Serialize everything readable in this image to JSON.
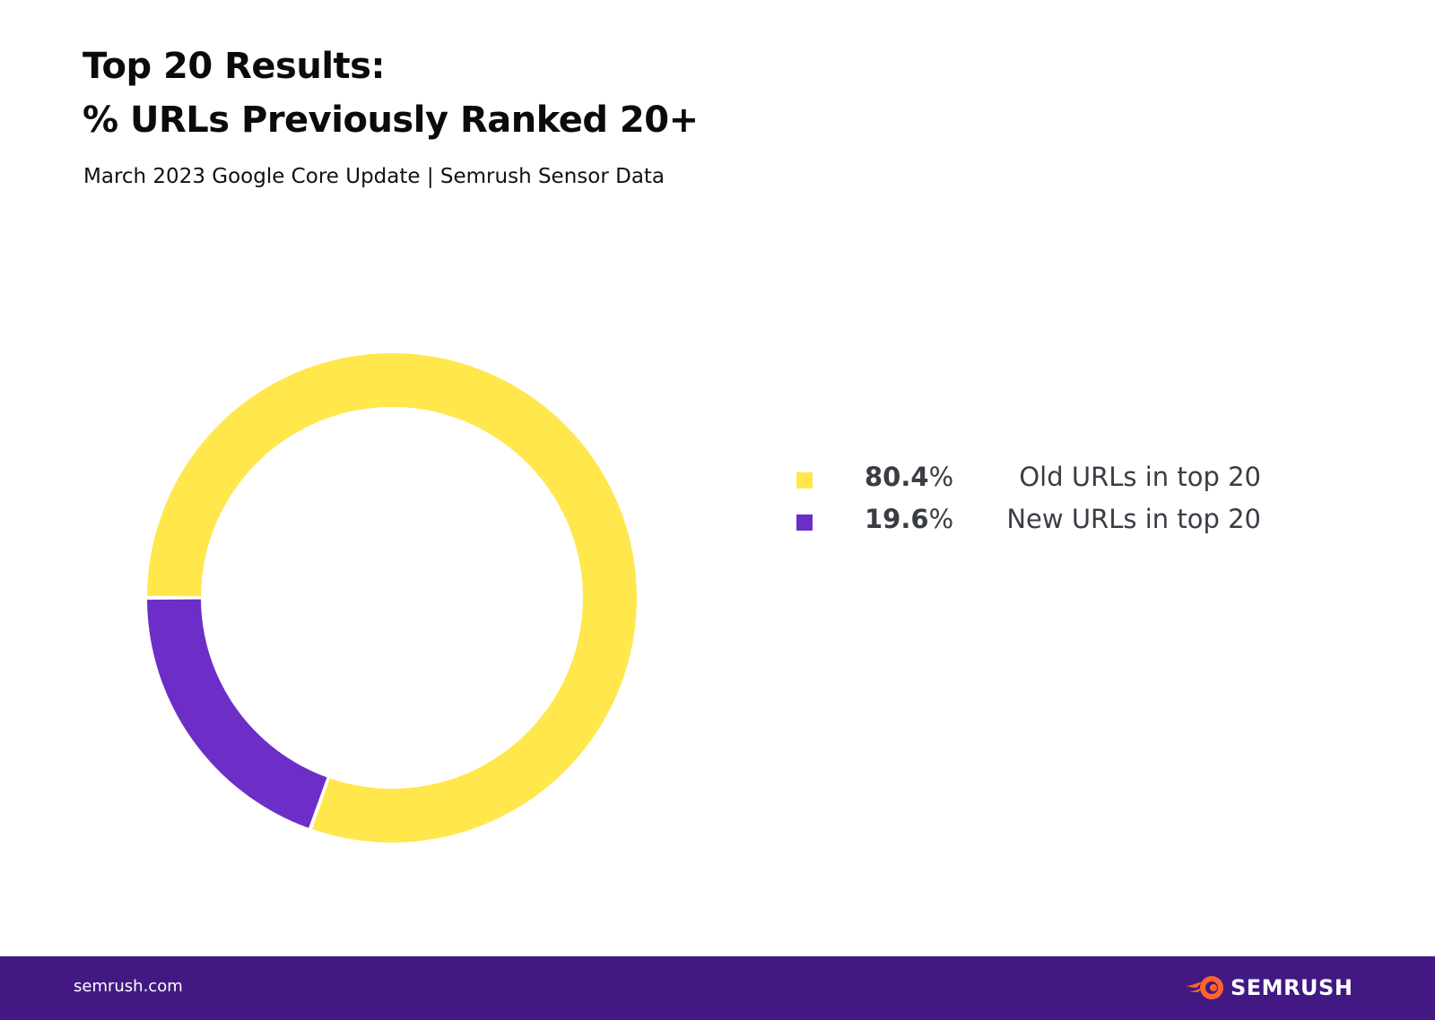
{
  "header": {
    "title_line1": "Top 20 Results:",
    "title_line2": "% URLs Previously Ranked 20+",
    "subtitle": "March 2023 Google Core Update | Semrush Sensor Data"
  },
  "chart_data": {
    "type": "pie",
    "donut": true,
    "categories": [
      "Old URLs in top 20",
      "New URLs in top 20"
    ],
    "values": [
      80.4,
      19.6
    ],
    "value_labels": [
      "80.4",
      "19.6"
    ],
    "unit": "%",
    "colors": [
      "#ffe74c",
      "#6c2ec7"
    ],
    "legend_position": "right"
  },
  "footer": {
    "site": "semrush.com",
    "brand": "SEMRUSH",
    "brand_icon": "semrush-flame-icon",
    "background": "#421983",
    "icon_color": "#ff642d"
  }
}
